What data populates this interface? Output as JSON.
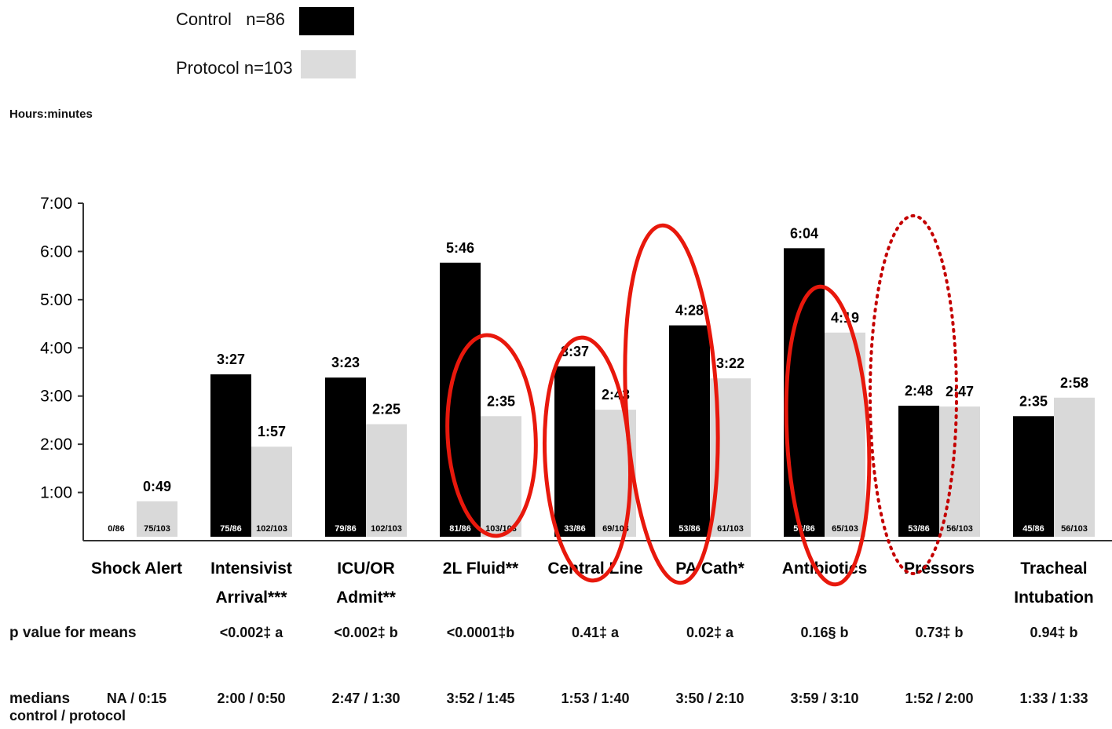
{
  "chart_data": {
    "type": "bar",
    "ylabel": "Hours:minutes",
    "ylim": [
      0,
      420
    ],
    "yticks": [
      {
        "value": 60,
        "label": "1:00"
      },
      {
        "value": 120,
        "label": "2:00"
      },
      {
        "value": 180,
        "label": "3:00"
      },
      {
        "value": 240,
        "label": "4:00"
      },
      {
        "value": 300,
        "label": "5:00"
      },
      {
        "value": 360,
        "label": "6:00"
      },
      {
        "value": 420,
        "label": "7:00"
      }
    ],
    "categories": [
      [
        "Shock Alert"
      ],
      [
        "Intensivist",
        "Arrival***"
      ],
      [
        "ICU/OR",
        "Admit**"
      ],
      [
        "2L Fluid**"
      ],
      [
        "Central Line"
      ],
      [
        "PA Cath*"
      ],
      [
        "Antibiotics"
      ],
      [
        "Pressors"
      ],
      [
        "Tracheal",
        "Intubation"
      ]
    ],
    "series": [
      {
        "name": "Control",
        "n_label": "n=86",
        "color": "#000000",
        "values": [
          0,
          207,
          203,
          346,
          217,
          268,
          364,
          168,
          155
        ],
        "value_labels": [
          "",
          "3:27",
          "3:23",
          "5:46",
          "3:37",
          "4:28",
          "6:04",
          "2:48",
          "2:35"
        ],
        "counts": [
          "0/86",
          "75/86",
          "79/86",
          "81/86",
          "33/86",
          "53/86",
          "56/86",
          "53/86",
          "45/86"
        ]
      },
      {
        "name": "Protocol",
        "n_label": "n=103",
        "color": "#d9d9d9",
        "values": [
          49,
          117,
          145,
          155,
          163,
          202,
          259,
          167,
          178
        ],
        "value_labels": [
          "0:49",
          "1:57",
          "2:25",
          "2:35",
          "2:43",
          "3:22",
          "4:19",
          "2:47",
          "2:58"
        ],
        "counts": [
          "75/103",
          "102/103",
          "102/103",
          "103/103",
          "69/103",
          "61/103",
          "65/103",
          "56/103",
          "56/103"
        ]
      }
    ],
    "annotations": [
      {
        "kind": "circle",
        "style": "solid",
        "color": "#e8180c",
        "category_index": 3
      },
      {
        "kind": "circle",
        "style": "solid",
        "color": "#e8180c",
        "category_index": 4
      },
      {
        "kind": "circle",
        "style": "solid",
        "color": "#e8180c",
        "category_index": 5
      },
      {
        "kind": "circle",
        "style": "solid",
        "color": "#e8180c",
        "category_index": 6
      },
      {
        "kind": "circle",
        "style": "dotted",
        "color": "#c40000",
        "category_index": 7
      }
    ]
  },
  "table": {
    "pvalue_label": "p value for means",
    "pvalues": [
      "",
      "<0.002‡ a",
      "<0.002‡ b",
      "<0.0001‡b",
      "0.41‡ a",
      "0.02‡ a",
      "0.16§ b",
      "0.73‡ b",
      "0.94‡ b"
    ],
    "medians_label_line1": "medians",
    "medians_label_line2": "control / protocol",
    "medians": [
      "NA / 0:15",
      "2:00 / 0:50",
      "2:47 / 1:30",
      "3:52 / 1:45",
      "1:53 / 1:40",
      "3:50 / 2:10",
      "3:59 / 3:10",
      "1:52 / 2:00",
      "1:33 / 1:33"
    ]
  }
}
